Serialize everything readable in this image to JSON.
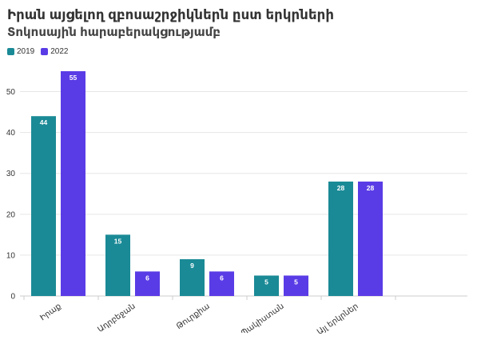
{
  "chart_data": {
    "type": "bar",
    "title": "Իրան այցելող զբոսաշրջիկներն ըստ երկրների",
    "subtitle": "Տոկոսային հարաբերակցությամբ",
    "categories": [
      "Իրաք",
      "Ադրբեջան",
      "Թուրքիա",
      "Պակիստան",
      "Այլ երկրներ"
    ],
    "series": [
      {
        "name": "2019",
        "color": "#1a8a96",
        "values": [
          44,
          15,
          9,
          5,
          28
        ]
      },
      {
        "name": "2022",
        "color": "#5a3ce6",
        "values": [
          55,
          6,
          6,
          5,
          28
        ]
      }
    ],
    "ylim": [
      0,
      55
    ],
    "yticks": [
      0,
      10,
      20,
      30,
      40,
      50
    ],
    "grid": true,
    "legend_position": "top-left",
    "data_labels": true
  }
}
